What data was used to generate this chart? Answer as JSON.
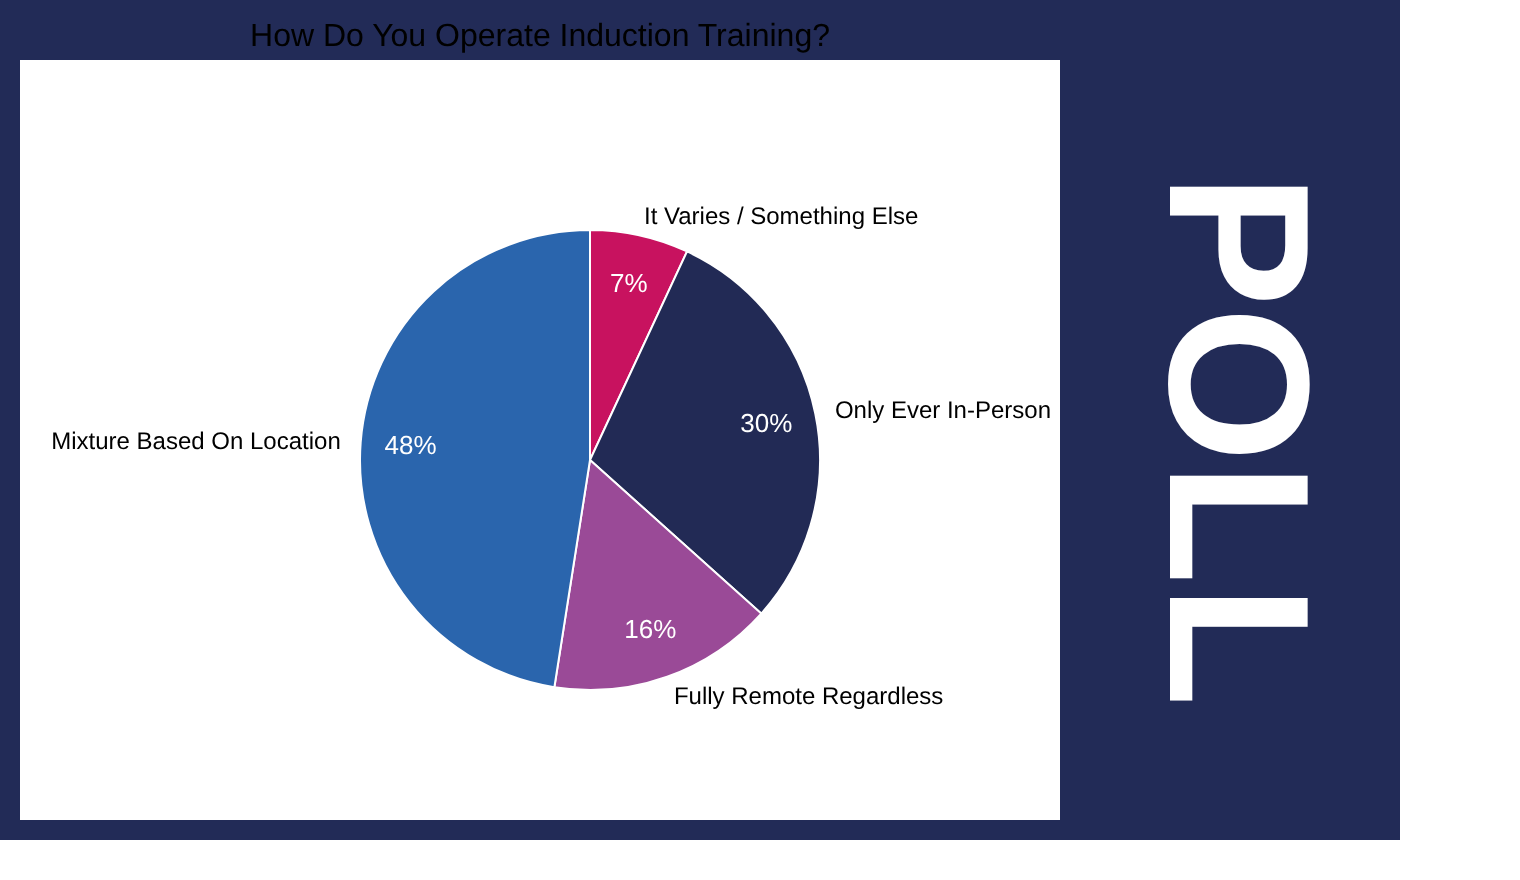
{
  "chart_data": {
    "type": "pie",
    "title": "How Do You Operate Induction Training?",
    "categories": [
      "It Varies / Something Else",
      "Only Ever In-Person",
      "Fully Remote Regardless",
      "Mixture Based On Location"
    ],
    "values": [
      7,
      30,
      16,
      48
    ],
    "value_labels": [
      "7%",
      "30%",
      "16%",
      "48%"
    ],
    "colors": [
      "#c8125f",
      "#222a55",
      "#9a4a97",
      "#2a65ad"
    ],
    "annotations": [
      "POLL"
    ]
  }
}
